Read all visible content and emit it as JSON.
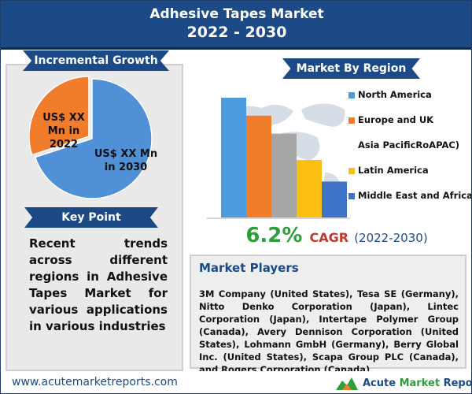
{
  "header": {
    "title": "Adhesive Tapes Market",
    "years": "2022 - 2030"
  },
  "incremental": {
    "heading": "Incremental Growth",
    "label_2022": "US$ XX Mn in 2022",
    "label_2030": "US$ XX Mn in 2030"
  },
  "key_point": {
    "heading": "Key Point",
    "text": "Recent trends across different regions in Adhesive Tapes Market for various applications in various industries"
  },
  "region": {
    "heading": "Market By Region"
  },
  "cagr": {
    "value": "6.2%",
    "label": "CAGR",
    "period": "(2022-2030)"
  },
  "players": {
    "title": "Market Players",
    "text": "3M Company (United States), Tesa SE (Germany), Nitto Denko Corporation (Japan), Lintec Corporation (Japan), Intertape Polymer Group (Canada), Avery Dennison Corporation (United States), Lohmann GmbH (Germany), Berry Global Inc. (United States), Scapa Group PLC (Canada), and Rogers Corporation (Canada)."
  },
  "footer": {
    "url": "www.acutemarketreports.com",
    "logo_part1": "Acute ",
    "logo_part2": "Market ",
    "logo_part3": "Reports"
  },
  "colors": {
    "primary": "#1b4a86",
    "orange": "#f07c2c",
    "pie_blue": "#4f90d6",
    "cagr_green": "#2e9e3a"
  },
  "chart_data": [
    {
      "type": "pie",
      "slices": [
        {
          "label": "US$ XX Mn in 2022",
          "value": 30,
          "color": "#f07c2c"
        },
        {
          "label": "US$ XX Mn in 2030",
          "value": 70,
          "color": "#4f90d6"
        }
      ]
    },
    {
      "type": "bar",
      "title": "Market By Region",
      "categories": [
        "North America",
        "Europe and UK",
        "Asia PacificRoAPAC)",
        "Latin America",
        "Middle East and Africa"
      ],
      "values": [
        100,
        85,
        70,
        48,
        30
      ],
      "colors": [
        "#4c9be0",
        "#f07c2c",
        "#a6a6a6",
        "#fbbf13",
        "#3f73c8"
      ],
      "legend_position": "right"
    }
  ]
}
